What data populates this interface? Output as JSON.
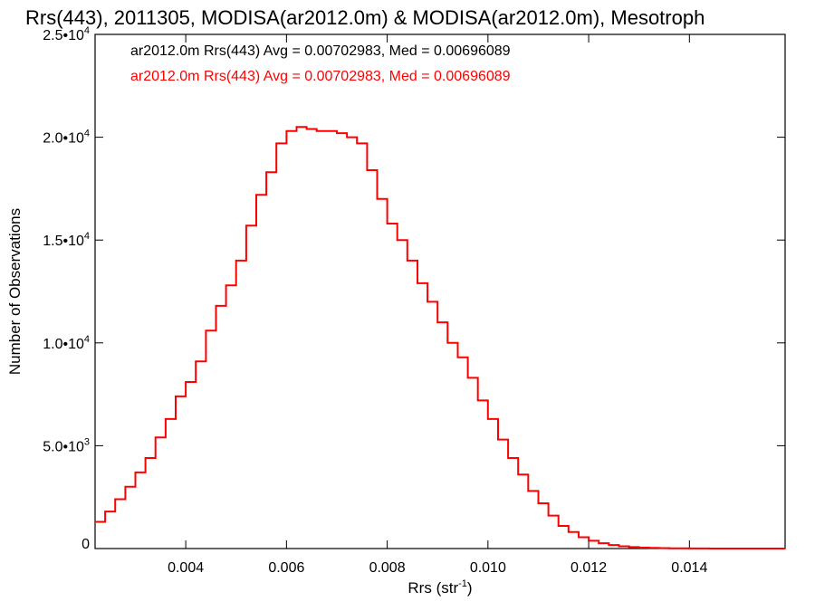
{
  "chart_data": {
    "type": "line",
    "title": "Rrs(443), 2011305, MODISA(ar2012.0m) & MODISA(ar2012.0m), Mesotroph",
    "xlabel": "Rrs (str",
    "xlabel_sup": "-1",
    "xlabel_end": ")",
    "ylabel": "Number of Observations",
    "xlim": [
      0.0022,
      0.0159
    ],
    "ylim": [
      0,
      25000
    ],
    "x_ticks": [
      {
        "value": 0.004,
        "label": "0.004"
      },
      {
        "value": 0.006,
        "label": "0.006"
      },
      {
        "value": 0.008,
        "label": "0.008"
      },
      {
        "value": 0.01,
        "label": "0.010"
      },
      {
        "value": 0.012,
        "label": "0.012"
      },
      {
        "value": 0.014,
        "label": "0.014"
      }
    ],
    "y_ticks": [
      {
        "value": 0,
        "mant": "0",
        "exp": ""
      },
      {
        "value": 5000,
        "mant": "5.0•10",
        "exp": "3"
      },
      {
        "value": 10000,
        "mant": "1.0•10",
        "exp": "4"
      },
      {
        "value": 15000,
        "mant": "1.5•10",
        "exp": "4"
      },
      {
        "value": 20000,
        "mant": "2.0•10",
        "exp": "4"
      },
      {
        "value": 25000,
        "mant": "2.5•10",
        "exp": "4"
      }
    ],
    "grid": false,
    "legend": [
      {
        "text": "ar2012.0m Rrs(443) Avg = 0.00702983, Med = 0.00696089",
        "color": "#000000"
      },
      {
        "text": "ar2012.0m Rrs(443) Avg = 0.00702983, Med = 0.00696089",
        "color": "#ff0000"
      }
    ],
    "series": [
      {
        "color": "#ff0000",
        "step": true,
        "x": [
          0.0022,
          0.0024,
          0.0026,
          0.0028,
          0.003,
          0.0032,
          0.0034,
          0.0036,
          0.0038,
          0.004,
          0.0042,
          0.0044,
          0.0046,
          0.0048,
          0.005,
          0.0052,
          0.0054,
          0.0056,
          0.0058,
          0.006,
          0.0062,
          0.0064,
          0.0066,
          0.0068,
          0.007,
          0.0072,
          0.0074,
          0.0076,
          0.0078,
          0.008,
          0.0082,
          0.0084,
          0.0086,
          0.0088,
          0.009,
          0.0092,
          0.0094,
          0.0096,
          0.0098,
          0.01,
          0.0102,
          0.0104,
          0.0106,
          0.0108,
          0.011,
          0.0112,
          0.0114,
          0.0116,
          0.0118,
          0.012,
          0.0122,
          0.0124,
          0.0126,
          0.0128,
          0.013,
          0.0132,
          0.0134,
          0.0136,
          0.0138,
          0.014,
          0.0142,
          0.0144,
          0.0146,
          0.0148,
          0.015,
          0.0152,
          0.0154,
          0.0156,
          0.0159
        ],
        "y": [
          1300,
          1800,
          2400,
          3000,
          3700,
          4400,
          5400,
          6300,
          7400,
          8100,
          9100,
          10600,
          11800,
          12800,
          14000,
          15700,
          17200,
          18300,
          19700,
          20300,
          20500,
          20400,
          20300,
          20300,
          20200,
          20000,
          19700,
          18400,
          17000,
          15800,
          15000,
          14000,
          12900,
          12000,
          11000,
          10000,
          9300,
          8300,
          7200,
          6300,
          5300,
          4400,
          3600,
          2800,
          2200,
          1600,
          1100,
          800,
          550,
          380,
          260,
          170,
          110,
          70,
          45,
          30,
          20,
          12,
          8,
          5,
          3,
          2,
          1,
          1,
          0,
          0,
          0,
          0,
          0
        ]
      }
    ]
  }
}
